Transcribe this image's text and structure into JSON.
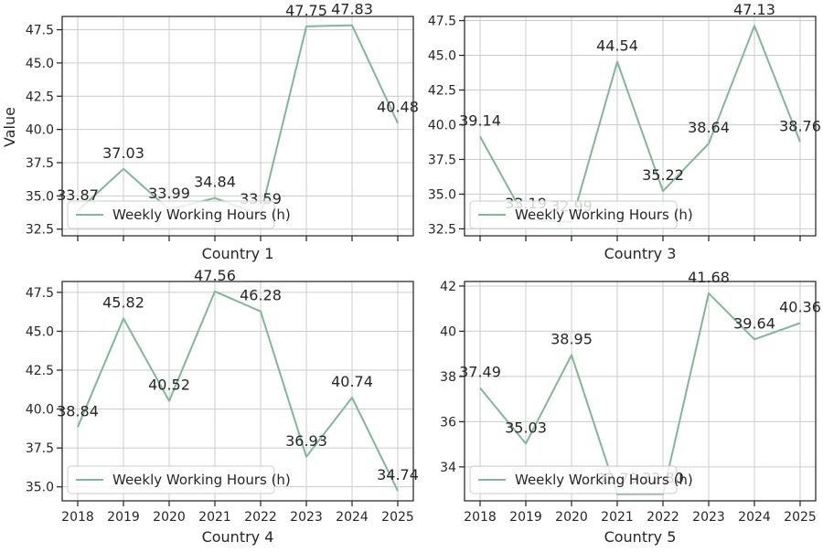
{
  "figure": {
    "ylabel": "Value",
    "line_color": "#7fb896"
  },
  "chart_data": [
    {
      "type": "line",
      "xlabel": "Country 1",
      "x": [
        2018,
        2019,
        2020,
        2021,
        2022,
        2023,
        2024,
        2025
      ],
      "series": [
        {
          "name": "Weekly Working Hours (h)",
          "values": [
            33.87,
            37.03,
            33.99,
            34.84,
            33.59,
            47.75,
            47.83,
            40.48
          ]
        }
      ],
      "value_labels": [
        "33.87",
        "37.03",
        "33.99",
        "34.84",
        "33.59",
        "47.75",
        "47.83",
        "40.48"
      ],
      "ylim": [
        32.0,
        48.5
      ],
      "yticks": [
        32.5,
        35.0,
        37.5,
        40.0,
        42.5,
        45.0,
        47.5
      ],
      "ytick_labels": [
        "32.5",
        "35.0",
        "37.5",
        "40.0",
        "42.5",
        "45.0",
        "47.5"
      ],
      "show_xtick_labels": false,
      "grid": true,
      "legend": "lower-left"
    },
    {
      "type": "line",
      "xlabel": "Country 3",
      "x": [
        2018,
        2019,
        2020,
        2021,
        2022,
        2023,
        2024,
        2025
      ],
      "series": [
        {
          "name": "Weekly Working Hours (h)",
          "values": [
            39.14,
            33.19,
            32.99,
            44.54,
            35.22,
            38.64,
            47.13,
            38.76
          ]
        }
      ],
      "value_labels": [
        "39.14",
        "33.19",
        "32.99",
        "44.54",
        "35.22",
        "38.64",
        "47.13",
        "38.76"
      ],
      "ylim": [
        32.0,
        47.8
      ],
      "yticks": [
        32.5,
        35.0,
        37.5,
        40.0,
        42.5,
        45.0,
        47.5
      ],
      "ytick_labels": [
        "32.5",
        "35.0",
        "37.5",
        "40.0",
        "42.5",
        "45.0",
        "47.5"
      ],
      "show_xtick_labels": false,
      "grid": true,
      "legend": "lower-left"
    },
    {
      "type": "line",
      "xlabel": "Country 4",
      "x": [
        2018,
        2019,
        2020,
        2021,
        2022,
        2023,
        2024,
        2025
      ],
      "series": [
        {
          "name": "Weekly Working Hours (h)",
          "values": [
            38.84,
            45.82,
            40.52,
            47.56,
            46.28,
            36.93,
            40.74,
            34.74
          ]
        }
      ],
      "value_labels": [
        "38.84",
        "45.82",
        "40.52",
        "47.56",
        "46.28",
        "36.93",
        "40.74",
        "34.74"
      ],
      "ylim": [
        34.1,
        48.2
      ],
      "yticks": [
        35.0,
        37.5,
        40.0,
        42.5,
        45.0,
        47.5
      ],
      "ytick_labels": [
        "35.0",
        "37.5",
        "40.0",
        "42.5",
        "45.0",
        "47.5"
      ],
      "xtick_labels": [
        "2018",
        "2019",
        "2020",
        "2021",
        "2022",
        "2023",
        "2024",
        "2025"
      ],
      "show_xtick_labels": true,
      "grid": true,
      "legend": "lower-left"
    },
    {
      "type": "line",
      "xlabel": "Country 5",
      "x": [
        2018,
        2019,
        2020,
        2021,
        2022,
        2023,
        2024,
        2025
      ],
      "series": [
        {
          "name": "Weekly Working Hours (h)",
          "values": [
            37.49,
            35.03,
            38.95,
            32.79,
            32.8,
            41.68,
            39.64,
            40.36
          ]
        }
      ],
      "value_labels": [
        "37.49",
        "35.03",
        "38.95",
        "32.79",
        "32.80",
        "41.68",
        "39.64",
        "40.36"
      ],
      "ylim": [
        32.5,
        42.2
      ],
      "yticks": [
        34,
        36,
        38,
        40,
        42
      ],
      "ytick_labels": [
        "34",
        "36",
        "38",
        "40",
        "42"
      ],
      "xtick_labels": [
        "2018",
        "2019",
        "2020",
        "2021",
        "2022",
        "2023",
        "2024",
        "2025"
      ],
      "show_xtick_labels": true,
      "grid": true,
      "legend": "lower-left"
    }
  ]
}
